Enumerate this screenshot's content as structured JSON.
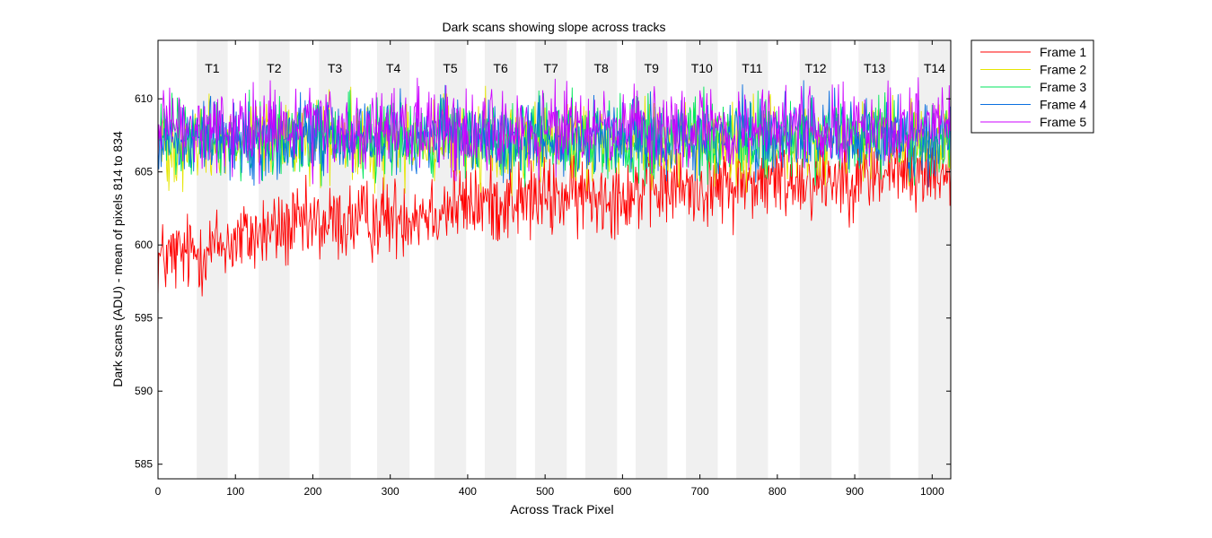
{
  "chart_data": {
    "type": "line",
    "title": "Dark scans showing slope across tracks",
    "xlabel": "Across Track Pixel",
    "ylabel": "Dark scans (ADU) - mean of pixels 814 to 834",
    "xlim": [
      0,
      1024
    ],
    "ylim": [
      584,
      614
    ],
    "xticks": [
      0,
      100,
      200,
      300,
      400,
      500,
      600,
      700,
      800,
      900,
      1000
    ],
    "yticks": [
      585,
      590,
      595,
      600,
      605,
      610
    ],
    "grid": false,
    "legend_position": "outside-top-right",
    "tracks": [
      {
        "label": "T1",
        "start": 50,
        "end": 90
      },
      {
        "label": "T2",
        "start": 130,
        "end": 170
      },
      {
        "label": "T3",
        "start": 208,
        "end": 249
      },
      {
        "label": "T4",
        "start": 283,
        "end": 325
      },
      {
        "label": "T5",
        "start": 357,
        "end": 398
      },
      {
        "label": "T6",
        "start": 422,
        "end": 463
      },
      {
        "label": "T7",
        "start": 487,
        "end": 528
      },
      {
        "label": "T8",
        "start": 552,
        "end": 593
      },
      {
        "label": "T9",
        "start": 617,
        "end": 658
      },
      {
        "label": "T10",
        "start": 682,
        "end": 723
      },
      {
        "label": "T11",
        "start": 747,
        "end": 788
      },
      {
        "label": "T12",
        "start": 829,
        "end": 870
      },
      {
        "label": "T13",
        "start": 905,
        "end": 946
      },
      {
        "label": "T14",
        "start": 982,
        "end": 1024
      }
    ],
    "series": [
      {
        "name": "Frame 1",
        "color": "#ff0000",
        "x": [
          0,
          50,
          100,
          150,
          200,
          250,
          300,
          350,
          400,
          450,
          500,
          550,
          600,
          650,
          700,
          750,
          800,
          850,
          900,
          950,
          1000,
          1024
        ],
        "values": [
          599.0,
          599.5,
          600.3,
          601.0,
          601.3,
          601.6,
          601.9,
          602.4,
          602.8,
          603.0,
          603.2,
          603.4,
          603.6,
          603.8,
          604.0,
          604.2,
          604.4,
          604.6,
          604.8,
          605.0,
          605.1,
          605.2
        ],
        "noise_amplitude": 2.4
      },
      {
        "name": "Frame 2",
        "color": "#e6e600",
        "x": [
          0,
          1024
        ],
        "values": [
          607.0,
          607.1
        ],
        "noise_amplitude": 2.4
      },
      {
        "name": "Frame 3",
        "color": "#00e65c",
        "x": [
          0,
          1024
        ],
        "values": [
          607.2,
          607.3
        ],
        "noise_amplitude": 2.4
      },
      {
        "name": "Frame 4",
        "color": "#0a6fe0",
        "x": [
          0,
          1024
        ],
        "values": [
          607.4,
          607.5
        ],
        "noise_amplitude": 2.3
      },
      {
        "name": "Frame 5",
        "color": "#cc00ff",
        "x": [
          0,
          1024
        ],
        "values": [
          607.8,
          607.9
        ],
        "noise_amplitude": 2.4
      }
    ]
  }
}
